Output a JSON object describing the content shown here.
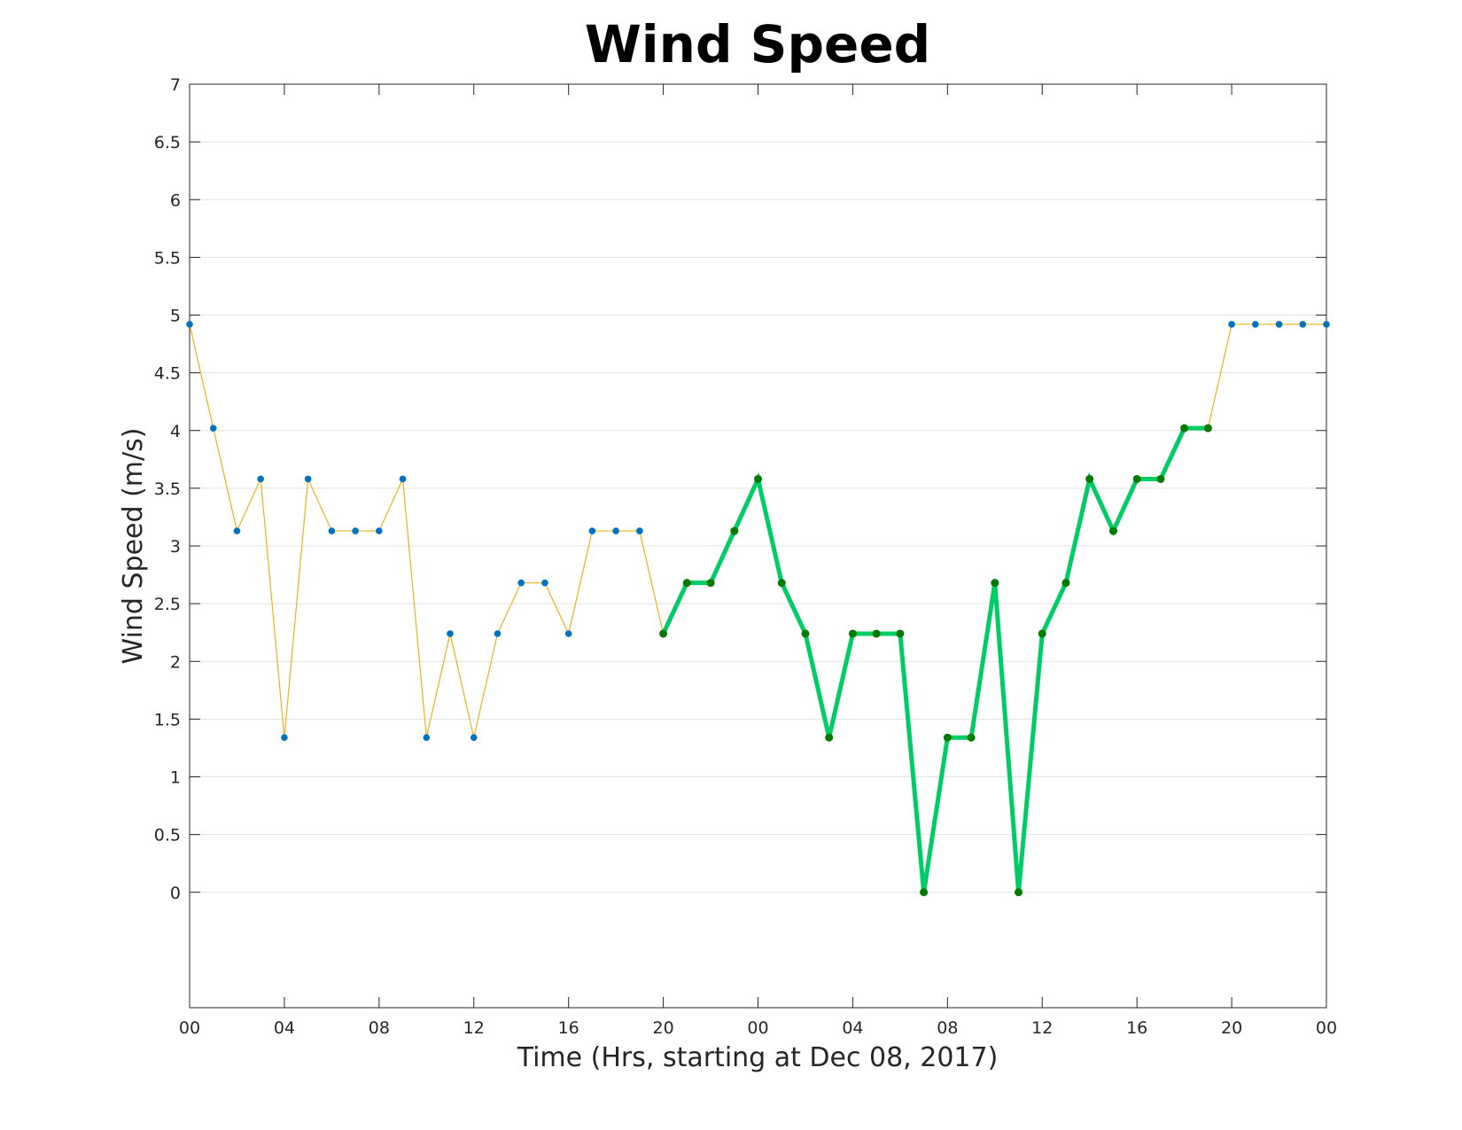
{
  "chart_data": {
    "type": "line",
    "title": "Wind Speed",
    "xlabel": "Time (Hrs, starting at Dec 08, 2017)",
    "ylabel": "Wind Speed (m/s)",
    "ylim": [
      -1,
      7
    ],
    "xlim": [
      0,
      48
    ],
    "grid": "horizontal",
    "x_tick_values": [
      0,
      4,
      8,
      12,
      16,
      20,
      24,
      28,
      32,
      36,
      40,
      44,
      48
    ],
    "x_tick_labels": [
      "00",
      "04",
      "08",
      "12",
      "16",
      "20",
      "00",
      "04",
      "08",
      "12",
      "16",
      "20",
      "00"
    ],
    "y_tick_values": [
      0,
      0.5,
      1,
      1.5,
      2,
      2.5,
      3,
      3.5,
      4,
      4.5,
      5,
      5.5,
      6,
      6.5,
      7
    ],
    "y_tick_labels": [
      "0",
      "0.5",
      "1",
      "1.5",
      "2",
      "2.5",
      "3",
      "3.5",
      "4",
      "4.5",
      "5",
      "5.5",
      "6",
      "6.5",
      "7"
    ],
    "series": [
      {
        "style": "thin",
        "line_color": "#EDB120",
        "marker_color": "#0072BD",
        "x": [
          0,
          1,
          2,
          3,
          4,
          5,
          6,
          7,
          8,
          9,
          10,
          11,
          12,
          13,
          14,
          15,
          16,
          17,
          18,
          19,
          20,
          21,
          22,
          23,
          24,
          25,
          26,
          27,
          28,
          29,
          30,
          31,
          32,
          33,
          34,
          35,
          36,
          37,
          38,
          39,
          40,
          41,
          42,
          43,
          44,
          45,
          46,
          47,
          48
        ],
        "y": [
          4.92,
          4.02,
          3.13,
          3.58,
          1.34,
          3.58,
          3.13,
          3.13,
          3.13,
          3.58,
          1.34,
          2.24,
          1.34,
          2.24,
          2.68,
          2.68,
          2.24,
          3.13,
          3.13,
          3.13,
          2.24,
          2.68,
          2.68,
          3.13,
          3.58,
          2.68,
          2.24,
          1.34,
          2.24,
          2.24,
          2.24,
          0,
          1.34,
          1.34,
          2.68,
          0,
          2.24,
          2.68,
          3.58,
          3.13,
          3.58,
          3.58,
          4.02,
          4.02,
          4.92,
          4.92,
          4.92,
          4.92,
          4.92
        ]
      },
      {
        "style": "thick",
        "line_color": "#00CC66",
        "marker_color": "#007A00",
        "x": [
          20,
          21,
          22,
          23,
          24,
          25,
          26,
          27,
          28,
          29,
          30,
          31,
          32,
          33,
          34,
          35,
          36,
          37,
          38,
          39,
          40,
          41,
          42,
          43
        ],
        "y": [
          2.24,
          2.68,
          2.68,
          3.13,
          3.58,
          2.68,
          2.24,
          1.34,
          2.24,
          2.24,
          2.24,
          0,
          1.34,
          1.34,
          2.68,
          0,
          2.24,
          2.68,
          3.58,
          3.13,
          3.58,
          3.58,
          4.02,
          4.02
        ]
      }
    ]
  }
}
